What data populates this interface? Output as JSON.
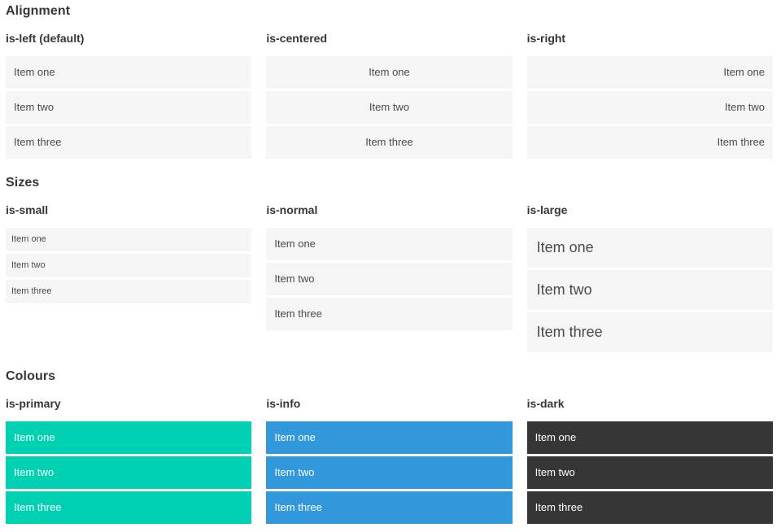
{
  "sections": [
    {
      "title": "Alignment",
      "groups": [
        {
          "label": "is-left (default)",
          "items": [
            "Item one",
            "Item two",
            "Item three"
          ]
        },
        {
          "label": "is-centered",
          "items": [
            "Item one",
            "Item two",
            "Item three"
          ]
        },
        {
          "label": "is-right",
          "items": [
            "Item one",
            "Item two",
            "Item three"
          ]
        }
      ]
    },
    {
      "title": "Sizes",
      "groups": [
        {
          "label": "is-small",
          "items": [
            "Item one",
            "Item two",
            "Item three"
          ]
        },
        {
          "label": "is-normal",
          "items": [
            "Item one",
            "Item two",
            "Item three"
          ]
        },
        {
          "label": "is-large",
          "items": [
            "Item one",
            "Item two",
            "Item three"
          ]
        }
      ]
    },
    {
      "title": "Colours",
      "groups": [
        {
          "label": "is-primary",
          "items": [
            "Item one",
            "Item two",
            "Item three"
          ]
        },
        {
          "label": "is-info",
          "items": [
            "Item one",
            "Item two",
            "Item three"
          ]
        },
        {
          "label": "is-dark",
          "items": [
            "Item one",
            "Item two",
            "Item three"
          ]
        }
      ]
    }
  ],
  "colors": {
    "primary": "#00d1b2",
    "info": "#3298dc",
    "dark": "#363636",
    "item_background": "#f5f5f5",
    "item_text": "#4a4a4a",
    "heading_text": "#363636"
  }
}
